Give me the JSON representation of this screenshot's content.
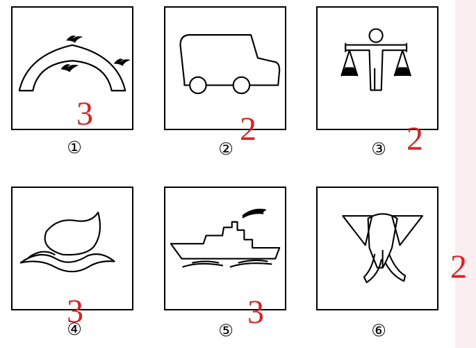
{
  "panels": [
    {
      "number": "①",
      "icon": "bridge-with-birds",
      "annotation": "3"
    },
    {
      "number": "②",
      "icon": "truck",
      "annotation": "2"
    },
    {
      "number": "③",
      "icon": "scales-figure",
      "annotation": "2"
    },
    {
      "number": "④",
      "icon": "peach",
      "annotation": "3"
    },
    {
      "number": "⑤",
      "icon": "ship",
      "annotation": "3"
    },
    {
      "number": "⑥",
      "icon": "elephant-head",
      "annotation": "2"
    }
  ],
  "colors": {
    "annotation": "#e02020",
    "strip": "#fbeef0"
  }
}
